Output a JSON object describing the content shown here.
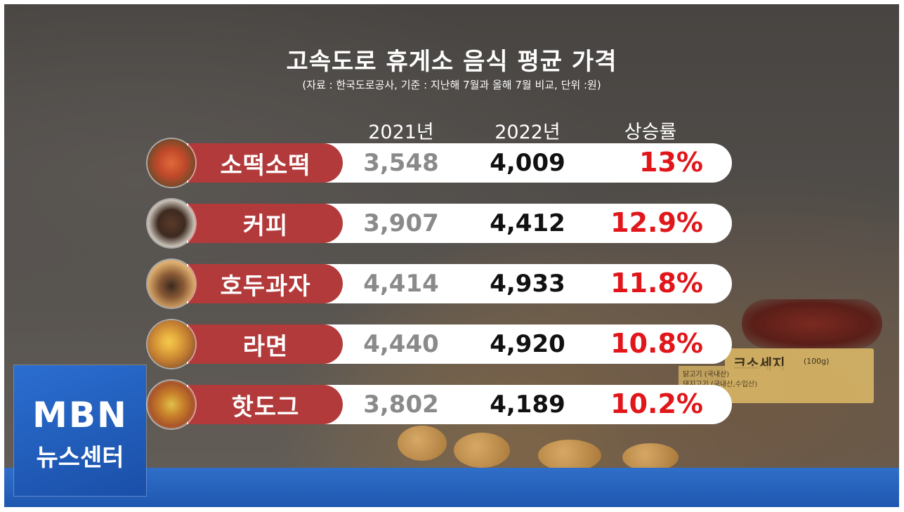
{
  "title": "고속도로 휴게소 음식 평균 가격",
  "subtitle": "(자료 : 한국도로공사, 기준 : 지난해 7월과 올해 7월 비교, 단위 :원)",
  "headers": [
    "2021년",
    "2022년",
    "상승률"
  ],
  "rows": [
    {
      "item": "소떡소떡",
      "icon": "sotteok-skewer-icon",
      "v2021": "3,548",
      "v2022": "4,009",
      "rate": "13%"
    },
    {
      "item": "커피",
      "icon": "coffee-cup-icon",
      "v2021": "3,907",
      "v2022": "4,412",
      "rate": "12.9%"
    },
    {
      "item": "호두과자",
      "icon": "walnut-cake-icon",
      "v2021": "4,414",
      "v2022": "4,933",
      "rate": "11.8%"
    },
    {
      "item": "라면",
      "icon": "ramen-bowl-icon",
      "v2021": "4,440",
      "v2022": "4,920",
      "rate": "10.8%"
    },
    {
      "item": "핫도그",
      "icon": "hotdog-icon",
      "v2021": "3,802",
      "v2022": "4,189",
      "rate": "10.2%"
    }
  ],
  "logo": {
    "brand": "MBN",
    "program": "뉴스센터"
  },
  "background_sign": {
    "name": "크소세지",
    "weight": "(100g)",
    "line1": "닭고기 (국내산)",
    "line2": "돼지고기 (국내산,수입산)"
  },
  "colors": {
    "label_bg": "#b23a3a",
    "rate": "#e0161a",
    "band": "#1f57b0"
  },
  "chart_data": {
    "type": "table",
    "title": "고속도로 휴게소 음식 평균 가격",
    "subtitle": "(자료 : 한국도로공사, 기준 : 지난해 7월과 올해 7월 비교, 단위 :원)",
    "columns": [
      "2021년",
      "2022년",
      "상승률"
    ],
    "categories": [
      "소떡소떡",
      "커피",
      "호두과자",
      "라면",
      "핫도그"
    ],
    "series": [
      {
        "name": "2021년",
        "values": [
          3548,
          3907,
          4414,
          4440,
          3802
        ]
      },
      {
        "name": "2022년",
        "values": [
          4009,
          4412,
          4933,
          4920,
          4189
        ]
      },
      {
        "name": "상승률",
        "values": [
          13,
          12.9,
          11.8,
          10.8,
          10.2
        ]
      }
    ]
  }
}
